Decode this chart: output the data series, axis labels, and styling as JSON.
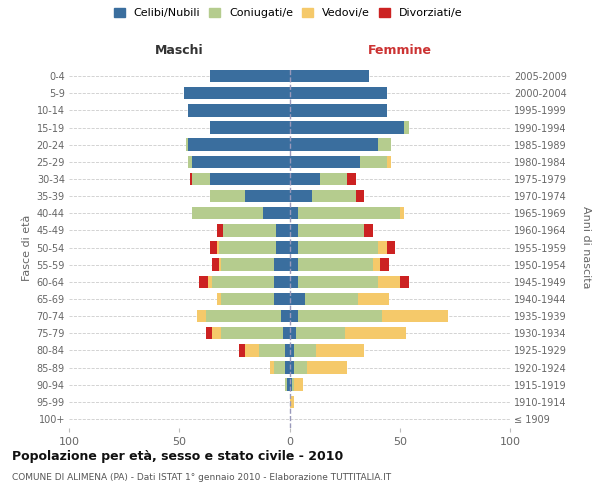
{
  "age_groups": [
    "100+",
    "95-99",
    "90-94",
    "85-89",
    "80-84",
    "75-79",
    "70-74",
    "65-69",
    "60-64",
    "55-59",
    "50-54",
    "45-49",
    "40-44",
    "35-39",
    "30-34",
    "25-29",
    "20-24",
    "15-19",
    "10-14",
    "5-9",
    "0-4"
  ],
  "birth_years": [
    "≤ 1909",
    "1910-1914",
    "1915-1919",
    "1920-1924",
    "1925-1929",
    "1930-1934",
    "1935-1939",
    "1940-1944",
    "1945-1949",
    "1950-1954",
    "1955-1959",
    "1960-1964",
    "1965-1969",
    "1970-1974",
    "1975-1979",
    "1980-1984",
    "1985-1989",
    "1990-1994",
    "1995-1999",
    "2000-2004",
    "2005-2009"
  ],
  "colors": {
    "celibi": "#3a6e9e",
    "coniugati": "#b5cc8e",
    "vedovi": "#f5c96a",
    "divorziati": "#cc2222"
  },
  "males": {
    "celibi": [
      0,
      0,
      1,
      2,
      2,
      3,
      4,
      7,
      7,
      7,
      6,
      6,
      12,
      20,
      36,
      44,
      46,
      36,
      46,
      48,
      36
    ],
    "coniugati": [
      0,
      0,
      1,
      5,
      12,
      28,
      34,
      24,
      28,
      24,
      26,
      24,
      32,
      16,
      8,
      2,
      1,
      0,
      0,
      0,
      0
    ],
    "vedovi": [
      0,
      0,
      0,
      2,
      6,
      4,
      4,
      2,
      2,
      1,
      1,
      0,
      0,
      0,
      0,
      0,
      0,
      0,
      0,
      0,
      0
    ],
    "divorziati": [
      0,
      0,
      0,
      0,
      3,
      3,
      0,
      0,
      4,
      3,
      3,
      3,
      0,
      0,
      1,
      0,
      0,
      0,
      0,
      0,
      0
    ]
  },
  "females": {
    "celibi": [
      0,
      0,
      1,
      2,
      2,
      3,
      4,
      7,
      4,
      4,
      4,
      4,
      4,
      10,
      14,
      32,
      40,
      52,
      44,
      44,
      36
    ],
    "coniugati": [
      0,
      0,
      1,
      6,
      10,
      22,
      38,
      24,
      36,
      34,
      36,
      30,
      46,
      20,
      12,
      12,
      6,
      2,
      0,
      0,
      0
    ],
    "vedovi": [
      0,
      2,
      4,
      18,
      22,
      28,
      30,
      14,
      10,
      3,
      4,
      0,
      2,
      0,
      0,
      2,
      0,
      0,
      0,
      0,
      0
    ],
    "divorziati": [
      0,
      0,
      0,
      0,
      0,
      0,
      0,
      0,
      4,
      4,
      4,
      4,
      0,
      4,
      4,
      0,
      0,
      0,
      0,
      0,
      0
    ]
  },
  "title": "Popolazione per età, sesso e stato civile - 2010",
  "subtitle": "COMUNE DI ALIMENA (PA) - Dati ISTAT 1° gennaio 2010 - Elaborazione TUTTITALIA.IT",
  "ylabel_left": "Fasce di età",
  "ylabel_right": "Anni di nascita",
  "xlim": [
    -100,
    100
  ],
  "xticks": [
    -100,
    -50,
    0,
    50,
    100
  ],
  "xticklabels": [
    "100",
    "50",
    "0",
    "50",
    "100"
  ],
  "legend_labels": [
    "Celibi/Nubili",
    "Coniugati/e",
    "Vedovi/e",
    "Divorziati/e"
  ],
  "maschi_label": "Maschi",
  "femmine_label": "Femmine",
  "bg_color": "#ffffff",
  "grid_color": "#cccccc",
  "text_color": "#666666",
  "title_color": "#111111",
  "subtitle_color": "#555555"
}
